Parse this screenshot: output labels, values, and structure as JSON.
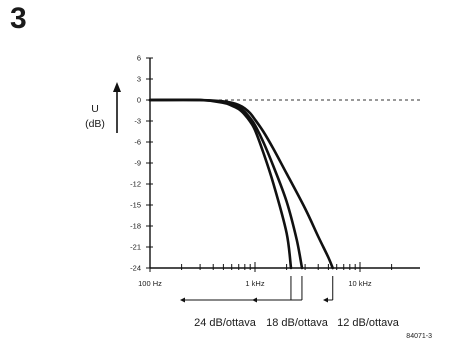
{
  "figure_number": "3",
  "figure_code": "84071-3",
  "chart_data": {
    "type": "line",
    "title": "",
    "ylabel": "U",
    "ylabel_unit": "(dB)",
    "xscale": "log",
    "xlim": [
      100,
      20000
    ],
    "ylim": [
      -24,
      6
    ],
    "yticks": [
      6,
      3,
      0,
      -3,
      -6,
      -9,
      -12,
      -15,
      -18,
      -21,
      -24
    ],
    "ytick_labels": [
      "6",
      "3",
      "0",
      "-3",
      "-6",
      "-9",
      "-12",
      "-15",
      "-18",
      "-21",
      "-24"
    ],
    "xtick_labels": [
      {
        "value": 100,
        "label": "100 Hz"
      },
      {
        "value": 1000,
        "label": "1 kHz"
      },
      {
        "value": 10000,
        "label": "10 kHz"
      }
    ],
    "reference_line": {
      "y": 0,
      "style": "dashed"
    },
    "grid": false,
    "series": [
      {
        "name": "24 dB/ottava",
        "x": [
          100,
          300,
          500,
          600,
          700,
          800,
          900,
          1000,
          1200,
          1500,
          2000,
          2200
        ],
        "y": [
          0,
          0,
          -0.4,
          -0.8,
          -1.3,
          -2.1,
          -3.1,
          -4.3,
          -7.5,
          -12,
          -19,
          -24
        ]
      },
      {
        "name": "18 dB/ottava",
        "x": [
          100,
          300,
          500,
          600,
          700,
          800,
          900,
          1000,
          1200,
          1500,
          2000,
          2500,
          2800
        ],
        "y": [
          0,
          0,
          -0.3,
          -0.6,
          -1.0,
          -1.7,
          -2.6,
          -3.6,
          -6.0,
          -9.5,
          -14.5,
          -20,
          -24
        ]
      },
      {
        "name": "12 dB/ottava",
        "x": [
          100,
          300,
          500,
          600,
          700,
          800,
          900,
          1000,
          1200,
          1500,
          2000,
          3000,
          4000,
          5000,
          5500
        ],
        "y": [
          0,
          0,
          -0.2,
          -0.4,
          -0.7,
          -1.2,
          -1.9,
          -2.8,
          -4.5,
          -7.0,
          -10.5,
          -15.5,
          -19.5,
          -22.5,
          -24
        ]
      }
    ]
  }
}
